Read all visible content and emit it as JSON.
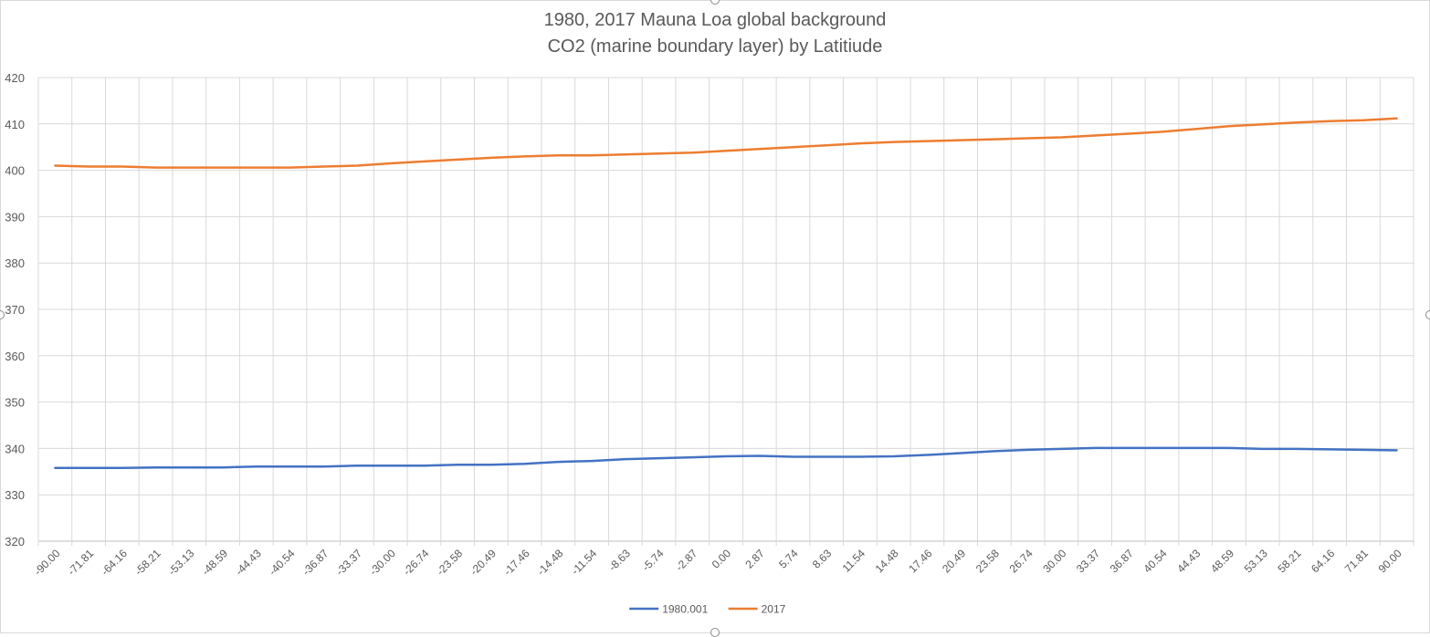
{
  "chart_data": {
    "type": "line",
    "title": "1980, 2017 Mauna Loa global background",
    "subtitle": "CO2 (marine boundary layer) by Latitiude",
    "xlabel": "",
    "ylabel": "",
    "ylim": [
      320,
      420
    ],
    "yticks": [
      "320",
      "330",
      "340",
      "350",
      "360",
      "370",
      "380",
      "390",
      "400",
      "410",
      "420"
    ],
    "grid": true,
    "legend_position": "bottom",
    "categories": [
      "-90.00",
      "-71.81",
      "-64.16",
      "-58.21",
      "-53.13",
      "-48.59",
      "-44.43",
      "-40.54",
      "-36.87",
      "-33.37",
      "-30.00",
      "-26.74",
      "-23.58",
      "-20.49",
      "-17.46",
      "-14.48",
      "-11.54",
      "-8.63",
      "-5.74",
      "-2.87",
      "0.00",
      "2.87",
      "5.74",
      "8.63",
      "11.54",
      "14.48",
      "17.46",
      "20.49",
      "23.58",
      "26.74",
      "30.00",
      "33.37",
      "36.87",
      "40.54",
      "44.43",
      "48.59",
      "53.13",
      "58.21",
      "64.16",
      "71.81",
      "90.00"
    ],
    "series": [
      {
        "name": "1980.001",
        "color": "#4472c4",
        "values": [
          335.8,
          335.8,
          335.8,
          335.9,
          335.9,
          335.9,
          336.1,
          336.1,
          336.1,
          336.3,
          336.3,
          336.3,
          336.5,
          336.5,
          336.7,
          337.1,
          337.3,
          337.7,
          337.9,
          338.1,
          338.3,
          338.4,
          338.2,
          338.2,
          338.2,
          338.3,
          338.6,
          339.0,
          339.4,
          339.7,
          339.9,
          340.1,
          340.1,
          340.1,
          340.1,
          340.1,
          339.9,
          339.9,
          339.8,
          339.7,
          339.6
        ]
      },
      {
        "name": "2017",
        "color": "#ed7d31",
        "values": [
          401.0,
          400.8,
          400.8,
          400.6,
          400.6,
          400.6,
          400.6,
          400.6,
          400.8,
          401.0,
          401.5,
          401.9,
          402.3,
          402.7,
          403.0,
          403.2,
          403.2,
          403.4,
          403.6,
          403.8,
          404.2,
          404.6,
          405.0,
          405.4,
          405.8,
          406.1,
          406.3,
          406.5,
          406.7,
          406.9,
          407.1,
          407.5,
          407.9,
          408.3,
          408.9,
          409.5,
          409.9,
          410.3,
          410.6,
          410.8,
          411.2
        ]
      }
    ]
  }
}
